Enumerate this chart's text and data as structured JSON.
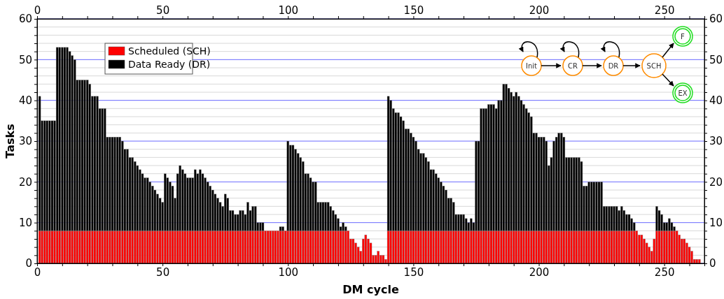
{
  "chart_data": {
    "type": "bar",
    "stacked": true,
    "xlabel": "DM cycle",
    "ylabel": "Tasks",
    "x": [
      1,
      2,
      3,
      4,
      5,
      6,
      7,
      8,
      9,
      10,
      11,
      12,
      13,
      14,
      15,
      16,
      17,
      18,
      19,
      20,
      21,
      22,
      23,
      24,
      25,
      26,
      27,
      28,
      29,
      30,
      31,
      32,
      33,
      34,
      35,
      36,
      37,
      38,
      39,
      40,
      41,
      42,
      43,
      44,
      45,
      46,
      47,
      48,
      49,
      50,
      51,
      52,
      53,
      54,
      55,
      56,
      57,
      58,
      59,
      60,
      61,
      62,
      63,
      64,
      65,
      66,
      67,
      68,
      69,
      70,
      71,
      72,
      73,
      74,
      75,
      76,
      77,
      78,
      79,
      80,
      81,
      82,
      83,
      84,
      85,
      86,
      87,
      88,
      89,
      90,
      91,
      92,
      93,
      94,
      95,
      96,
      97,
      98,
      99,
      100,
      101,
      102,
      103,
      104,
      105,
      106,
      107,
      108,
      109,
      110,
      111,
      112,
      113,
      114,
      115,
      116,
      117,
      118,
      119,
      120,
      121,
      122,
      123,
      124,
      125,
      126,
      127,
      128,
      129,
      130,
      131,
      132,
      133,
      134,
      135,
      136,
      137,
      138,
      139,
      140,
      141,
      142,
      143,
      144,
      145,
      146,
      147,
      148,
      149,
      150,
      151,
      152,
      153,
      154,
      155,
      156,
      157,
      158,
      159,
      160,
      161,
      162,
      163,
      164,
      165,
      166,
      167,
      168,
      169,
      170,
      171,
      172,
      173,
      174,
      175,
      176,
      177,
      178,
      179,
      180,
      181,
      182,
      183,
      184,
      185,
      186,
      187,
      188,
      189,
      190,
      191,
      192,
      193,
      194,
      195,
      196,
      197,
      198,
      199,
      200,
      201,
      202,
      203,
      204,
      205,
      206,
      207,
      208,
      209,
      210,
      211,
      212,
      213,
      214,
      215,
      216,
      217,
      218,
      219,
      220,
      221,
      222,
      223,
      224,
      225,
      226,
      227,
      228,
      229,
      230,
      231,
      232,
      233,
      234,
      235,
      236,
      237,
      238,
      239,
      240,
      241,
      242,
      243,
      244,
      245,
      246,
      247,
      248,
      249,
      250,
      251,
      252,
      253,
      254,
      255,
      256,
      257,
      258,
      259,
      260,
      261,
      262,
      263,
      264
    ],
    "series": [
      {
        "name": "Scheduled (SCH)",
        "color": "#ff0000",
        "values": [
          8,
          8,
          8,
          8,
          8,
          8,
          8,
          8,
          8,
          8,
          8,
          8,
          8,
          8,
          8,
          8,
          8,
          8,
          8,
          8,
          8,
          8,
          8,
          8,
          8,
          8,
          8,
          8,
          8,
          8,
          8,
          8,
          8,
          8,
          8,
          8,
          8,
          8,
          8,
          8,
          8,
          8,
          8,
          8,
          8,
          8,
          8,
          8,
          8,
          8,
          8,
          8,
          8,
          8,
          8,
          8,
          8,
          8,
          8,
          8,
          8,
          8,
          8,
          8,
          8,
          8,
          8,
          8,
          8,
          8,
          8,
          8,
          8,
          8,
          8,
          8,
          8,
          8,
          8,
          8,
          8,
          8,
          8,
          8,
          8,
          8,
          8,
          8,
          8,
          8,
          8,
          8,
          8,
          8,
          8,
          8,
          8,
          8,
          8,
          8,
          8,
          8,
          8,
          8,
          8,
          8,
          8,
          8,
          8,
          8,
          8,
          8,
          8,
          8,
          8,
          8,
          8,
          8,
          8,
          8,
          8,
          8,
          8,
          8,
          6,
          6,
          5,
          4,
          3,
          6,
          7,
          6,
          5,
          2,
          2,
          3,
          2,
          2,
          1,
          8,
          8,
          8,
          8,
          8,
          8,
          8,
          8,
          8,
          8,
          8,
          8,
          8,
          8,
          8,
          8,
          8,
          8,
          8,
          8,
          8,
          8,
          8,
          8,
          8,
          8,
          8,
          8,
          8,
          8,
          8,
          8,
          8,
          8,
          8,
          8,
          8,
          8,
          8,
          8,
          8,
          8,
          8,
          8,
          8,
          8,
          8,
          8,
          8,
          8,
          8,
          8,
          8,
          8,
          8,
          8,
          8,
          8,
          8,
          8,
          8,
          8,
          8,
          8,
          8,
          8,
          8,
          8,
          8,
          8,
          8,
          8,
          8,
          8,
          8,
          8,
          8,
          8,
          8,
          8,
          8,
          8,
          8,
          8,
          8,
          8,
          8,
          8,
          8,
          8,
          8,
          8,
          8,
          8,
          8,
          8,
          8,
          8,
          8,
          8,
          7,
          7,
          6,
          5,
          4,
          3,
          6,
          8,
          8,
          8,
          8,
          8,
          8,
          8,
          8,
          8,
          7,
          6,
          6,
          5,
          4,
          3,
          1,
          1,
          1
        ]
      },
      {
        "name": "Data Ready (DR)",
        "color": "#000000",
        "values": [
          33,
          27,
          27,
          27,
          27,
          27,
          27,
          45,
          45,
          45,
          45,
          45,
          44,
          43,
          42,
          37,
          37,
          37,
          37,
          37,
          36,
          33,
          33,
          33,
          30,
          30,
          30,
          23,
          23,
          23,
          23,
          23,
          23,
          22,
          20,
          20,
          18,
          18,
          17,
          16,
          15,
          14,
          13,
          13,
          12,
          11,
          10,
          9,
          8,
          7,
          14,
          13,
          12,
          11,
          8,
          14,
          16,
          15,
          14,
          13,
          13,
          13,
          15,
          14,
          15,
          14,
          13,
          12,
          11,
          10,
          9,
          8,
          7,
          6,
          9,
          8,
          5,
          5,
          4,
          4,
          5,
          5,
          4,
          7,
          5,
          6,
          6,
          2,
          2,
          2,
          0,
          0,
          0,
          0,
          0,
          0,
          1,
          1,
          0,
          22,
          21,
          21,
          20,
          19,
          18,
          17,
          14,
          14,
          13,
          12,
          12,
          7,
          7,
          7,
          7,
          7,
          6,
          5,
          4,
          3,
          1,
          2,
          1,
          0,
          0,
          0,
          0,
          0,
          0,
          0,
          0,
          0,
          0,
          0,
          0,
          0,
          0,
          0,
          0,
          33,
          32,
          30,
          29,
          29,
          28,
          27,
          25,
          25,
          24,
          23,
          22,
          20,
          19,
          19,
          18,
          17,
          15,
          15,
          14,
          13,
          12,
          11,
          10,
          8,
          8,
          7,
          4,
          4,
          4,
          4,
          3,
          2,
          3,
          2,
          22,
          22,
          30,
          30,
          30,
          31,
          31,
          31,
          30,
          32,
          32,
          36,
          36,
          35,
          34,
          33,
          34,
          33,
          32,
          31,
          30,
          29,
          28,
          24,
          24,
          23,
          23,
          23,
          22,
          16,
          18,
          22,
          23,
          24,
          24,
          23,
          18,
          18,
          18,
          18,
          18,
          18,
          17,
          11,
          11,
          12,
          12,
          12,
          12,
          12,
          12,
          6,
          6,
          6,
          6,
          6,
          6,
          5,
          6,
          5,
          4,
          4,
          3,
          2,
          0,
          0,
          0,
          0,
          0,
          0,
          0,
          0,
          6,
          5,
          4,
          2,
          2,
          3,
          2,
          1,
          0,
          0,
          0,
          0,
          0,
          0,
          0,
          0,
          0,
          0
        ]
      }
    ],
    "xlim": [
      0,
      266
    ],
    "xticks": [
      0,
      {
        "value": 10,
        "label": null
      },
      {
        "value": 20,
        "label": null
      },
      {
        "value": 30,
        "label": null
      },
      {
        "value": 40,
        "label": null
      },
      50,
      {
        "value": 60,
        "label": null
      },
      {
        "value": 70,
        "label": null
      },
      {
        "value": 80,
        "label": null
      },
      {
        "value": 90,
        "label": null
      },
      100,
      {
        "value": 110,
        "label": null
      },
      {
        "value": 120,
        "label": null
      },
      {
        "value": 130,
        "label": null
      },
      {
        "value": 140,
        "label": null
      },
      150,
      {
        "value": 160,
        "label": null
      },
      {
        "value": 170,
        "label": null
      },
      {
        "value": 180,
        "label": null
      },
      {
        "value": 190,
        "label": null
      },
      200,
      {
        "value": 210,
        "label": null
      },
      {
        "value": 220,
        "label": null
      },
      {
        "value": 230,
        "label": null
      },
      {
        "value": 240,
        "label": null
      },
      250,
      {
        "value": 260,
        "label": null
      }
    ],
    "x2lim": [
      0,
      266
    ],
    "x2ticks": [
      0,
      {
        "value": 10,
        "label": null
      },
      {
        "value": 20,
        "label": null
      },
      {
        "value": 30,
        "label": null
      },
      {
        "value": 40,
        "label": null
      },
      50,
      {
        "value": 60,
        "label": null
      },
      {
        "value": 70,
        "label": null
      },
      {
        "value": 80,
        "label": null
      },
      {
        "value": 90,
        "label": null
      },
      100,
      {
        "value": 110,
        "label": null
      },
      {
        "value": 120,
        "label": null
      },
      {
        "value": 130,
        "label": null
      },
      {
        "value": 140,
        "label": null
      },
      150,
      {
        "value": 160,
        "label": null
      },
      {
        "value": 170,
        "label": null
      },
      {
        "value": 180,
        "label": null
      },
      {
        "value": 190,
        "label": null
      },
      200,
      {
        "value": 210,
        "label": null
      },
      {
        "value": 220,
        "label": null
      },
      {
        "value": 230,
        "label": null
      },
      {
        "value": 240,
        "label": null
      },
      250,
      {
        "value": 260,
        "label": null
      }
    ],
    "ylim": [
      0,
      60
    ],
    "yticks": [
      0,
      {
        "value": 2,
        "label": null
      },
      {
        "value": 4,
        "label": null
      },
      {
        "value": 6,
        "label": null
      },
      {
        "value": 8,
        "label": null
      },
      10,
      {
        "value": 12,
        "label": null
      },
      {
        "value": 14,
        "label": null
      },
      {
        "value": 16,
        "label": null
      },
      {
        "value": 18,
        "label": null
      },
      20,
      {
        "value": 22,
        "label": null
      },
      {
        "value": 24,
        "label": null
      },
      {
        "value": 26,
        "label": null
      },
      {
        "value": 28,
        "label": null
      },
      30,
      {
        "value": 32,
        "label": null
      },
      {
        "value": 34,
        "label": null
      },
      {
        "value": 36,
        "label": null
      },
      {
        "value": 38,
        "label": null
      },
      40,
      {
        "value": 42,
        "label": null
      },
      {
        "value": 44,
        "label": null
      },
      {
        "value": 46,
        "label": null
      },
      {
        "value": 48,
        "label": null
      },
      50,
      {
        "value": 52,
        "label": null
      },
      {
        "value": 54,
        "label": null
      },
      {
        "value": 56,
        "label": null
      },
      {
        "value": 58,
        "label": null
      },
      60
    ],
    "y2lim": [
      0,
      60
    ],
    "y2ticks": [
      0,
      {
        "value": 2,
        "label": null
      },
      {
        "value": 4,
        "label": null
      },
      {
        "value": 6,
        "label": null
      },
      {
        "value": 8,
        "label": null
      },
      10,
      {
        "value": 12,
        "label": null
      },
      {
        "value": 14,
        "label": null
      },
      {
        "value": 16,
        "label": null
      },
      {
        "value": 18,
        "label": null
      },
      20,
      {
        "value": 22,
        "label": null
      },
      {
        "value": 24,
        "label": null
      },
      {
        "value": 26,
        "label": null
      },
      {
        "value": 28,
        "label": null
      },
      30,
      {
        "value": 32,
        "label": null
      },
      {
        "value": 34,
        "label": null
      },
      {
        "value": 36,
        "label": null
      },
      {
        "value": 38,
        "label": null
      },
      40,
      {
        "value": 42,
        "label": null
      },
      {
        "value": 44,
        "label": null
      },
      {
        "value": 46,
        "label": null
      },
      {
        "value": 48,
        "label": null
      },
      50,
      {
        "value": 52,
        "label": null
      },
      {
        "value": 54,
        "label": null
      },
      {
        "value": 56,
        "label": null
      },
      {
        "value": 58,
        "label": null
      },
      60
    ],
    "grid": "y",
    "legend": "top left",
    "annotations": [
      "Init",
      "CR",
      "DR",
      "SCH",
      "F",
      "EX"
    ]
  }
}
